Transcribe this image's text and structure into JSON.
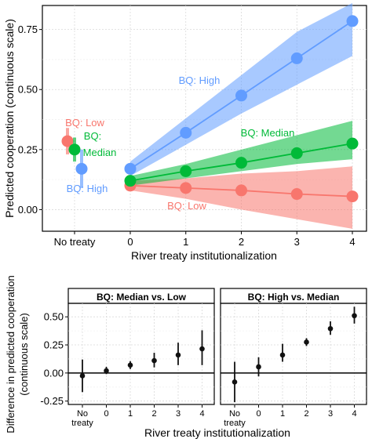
{
  "chart_data": [
    {
      "type": "scatter",
      "panel": "top",
      "xlabel": "River treaty institutionalization",
      "ylabel": "Predicted cooperation (continuous scale)",
      "x_tick_labels": [
        "No treaty",
        "0",
        "1",
        "2",
        "3",
        "4"
      ],
      "y_tick_labels": [
        "0.00",
        "0.25",
        "0.50",
        "0.75"
      ],
      "ylim": [
        -0.09,
        0.85
      ],
      "grid": true,
      "series": [
        {
          "name": "BQ: Low",
          "color": "#F8766D",
          "no_treaty": {
            "value": 0.285,
            "lower": 0.23,
            "upper": 0.34
          },
          "x": [
            0,
            1,
            2,
            3,
            4
          ],
          "values": [
            0.1,
            0.09,
            0.08,
            0.065,
            0.055
          ],
          "band_lower": [
            0.08,
            0.045,
            0.0,
            -0.04,
            -0.08
          ],
          "band_upper": [
            0.12,
            0.13,
            0.15,
            0.16,
            0.18
          ]
        },
        {
          "name": "BQ: Median",
          "color": "#00BA38",
          "no_treaty": {
            "value": 0.25,
            "lower": 0.2,
            "upper": 0.3
          },
          "x": [
            0,
            1,
            2,
            3,
            4
          ],
          "values": [
            0.12,
            0.16,
            0.195,
            0.235,
            0.275
          ],
          "band_lower": [
            0.1,
            0.13,
            0.16,
            0.19,
            0.21
          ],
          "band_upper": [
            0.14,
            0.19,
            0.25,
            0.31,
            0.37
          ]
        },
        {
          "name": "BQ: High",
          "color": "#619CFF",
          "no_treaty": {
            "value": 0.17,
            "lower": 0.09,
            "upper": 0.25
          },
          "x": [
            0,
            1,
            2,
            3,
            4
          ],
          "values": [
            0.17,
            0.32,
            0.475,
            0.63,
            0.785
          ],
          "band_lower": [
            0.14,
            0.27,
            0.4,
            0.52,
            0.64
          ],
          "band_upper": [
            0.2,
            0.38,
            0.56,
            0.74,
            0.86
          ]
        }
      ]
    },
    {
      "type": "scatter",
      "panel": "bottom",
      "xlabel": "River treaty institutionalization",
      "ylabel": "Difference in predicted cooperation (continuous scale)",
      "categories": [
        "No treaty",
        "0",
        "1",
        "2",
        "3",
        "4"
      ],
      "y_tick_labels": [
        "-0.25",
        "0.00",
        "0.25",
        "0.50"
      ],
      "ylim": [
        -0.28,
        0.62
      ],
      "grid": true,
      "facets": [
        {
          "title": "BQ: Median vs. Low",
          "values": [
            -0.025,
            0.02,
            0.07,
            0.11,
            0.16,
            0.215
          ],
          "lower": [
            -0.17,
            -0.01,
            0.035,
            0.05,
            0.07,
            0.07
          ],
          "upper": [
            0.12,
            0.055,
            0.105,
            0.18,
            0.27,
            0.38
          ]
        },
        {
          "title": "BQ: High vs. Median",
          "values": [
            -0.08,
            0.055,
            0.16,
            0.275,
            0.395,
            0.51
          ],
          "lower": [
            -0.26,
            -0.03,
            0.1,
            0.24,
            0.34,
            0.44
          ],
          "upper": [
            0.1,
            0.14,
            0.26,
            0.31,
            0.46,
            0.59
          ]
        }
      ]
    }
  ],
  "annotations": {
    "low_no_treaty": "BQ: Low",
    "median_no_treaty_1": "BQ:",
    "median_no_treaty_2": "Median",
    "high_no_treaty": "BQ: High",
    "high_line": "BQ: High",
    "median_line": "BQ: Median",
    "low_line": "BQ: Low"
  },
  "bottom_x_tick_first": [
    "No",
    "treaty"
  ],
  "bottom_ylabel_lines": [
    "Difference in predicted cooperation",
    "(continuous scale)"
  ]
}
